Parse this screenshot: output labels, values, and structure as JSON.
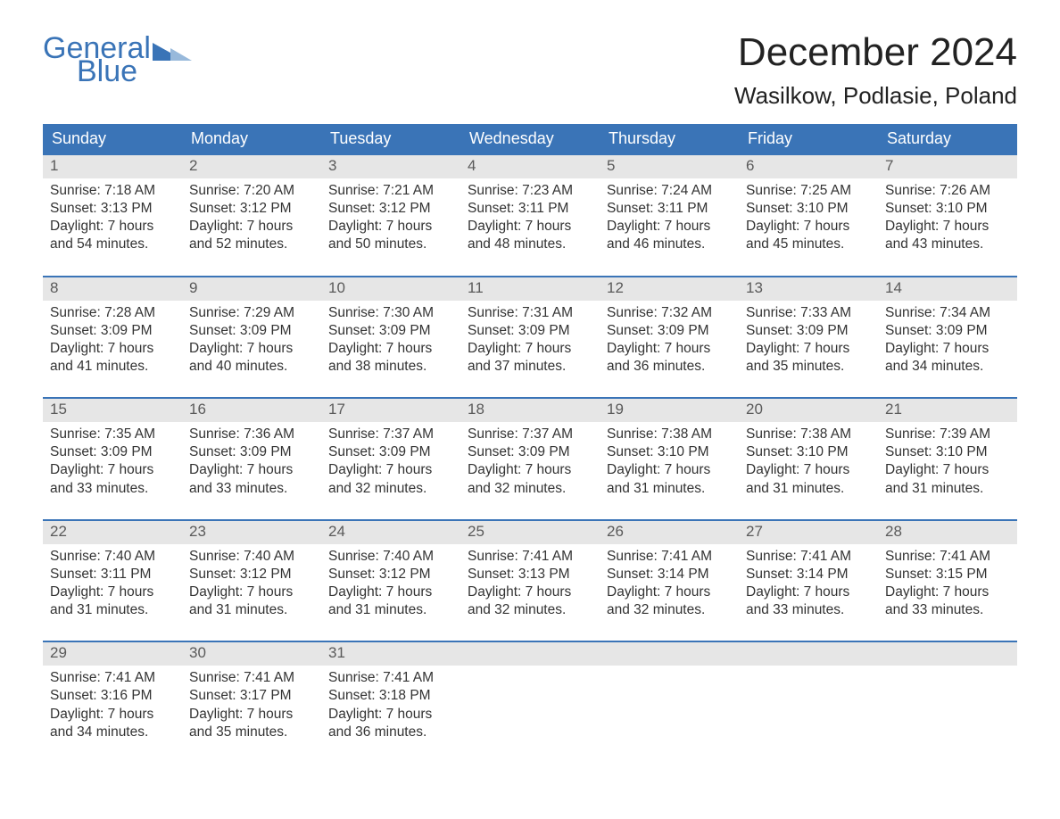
{
  "brand": {
    "word1": "General",
    "word2": "Blue",
    "color": "#3a74b7"
  },
  "header": {
    "title": "December 2024",
    "location": "Wasilkow, Podlasie, Poland"
  },
  "calendar": {
    "day_names": [
      "Sunday",
      "Monday",
      "Tuesday",
      "Wednesday",
      "Thursday",
      "Friday",
      "Saturday"
    ],
    "header_bg": "#3a74b7",
    "header_fg": "#ffffff",
    "daynum_bg": "#e6e6e6",
    "week_rule_color": "#3a74b7",
    "text_color": "#333333",
    "weeks": [
      [
        {
          "n": "1",
          "sunrise": "Sunrise: 7:18 AM",
          "sunset": "Sunset: 3:13 PM",
          "dl1": "Daylight: 7 hours",
          "dl2": "and 54 minutes."
        },
        {
          "n": "2",
          "sunrise": "Sunrise: 7:20 AM",
          "sunset": "Sunset: 3:12 PM",
          "dl1": "Daylight: 7 hours",
          "dl2": "and 52 minutes."
        },
        {
          "n": "3",
          "sunrise": "Sunrise: 7:21 AM",
          "sunset": "Sunset: 3:12 PM",
          "dl1": "Daylight: 7 hours",
          "dl2": "and 50 minutes."
        },
        {
          "n": "4",
          "sunrise": "Sunrise: 7:23 AM",
          "sunset": "Sunset: 3:11 PM",
          "dl1": "Daylight: 7 hours",
          "dl2": "and 48 minutes."
        },
        {
          "n": "5",
          "sunrise": "Sunrise: 7:24 AM",
          "sunset": "Sunset: 3:11 PM",
          "dl1": "Daylight: 7 hours",
          "dl2": "and 46 minutes."
        },
        {
          "n": "6",
          "sunrise": "Sunrise: 7:25 AM",
          "sunset": "Sunset: 3:10 PM",
          "dl1": "Daylight: 7 hours",
          "dl2": "and 45 minutes."
        },
        {
          "n": "7",
          "sunrise": "Sunrise: 7:26 AM",
          "sunset": "Sunset: 3:10 PM",
          "dl1": "Daylight: 7 hours",
          "dl2": "and 43 minutes."
        }
      ],
      [
        {
          "n": "8",
          "sunrise": "Sunrise: 7:28 AM",
          "sunset": "Sunset: 3:09 PM",
          "dl1": "Daylight: 7 hours",
          "dl2": "and 41 minutes."
        },
        {
          "n": "9",
          "sunrise": "Sunrise: 7:29 AM",
          "sunset": "Sunset: 3:09 PM",
          "dl1": "Daylight: 7 hours",
          "dl2": "and 40 minutes."
        },
        {
          "n": "10",
          "sunrise": "Sunrise: 7:30 AM",
          "sunset": "Sunset: 3:09 PM",
          "dl1": "Daylight: 7 hours",
          "dl2": "and 38 minutes."
        },
        {
          "n": "11",
          "sunrise": "Sunrise: 7:31 AM",
          "sunset": "Sunset: 3:09 PM",
          "dl1": "Daylight: 7 hours",
          "dl2": "and 37 minutes."
        },
        {
          "n": "12",
          "sunrise": "Sunrise: 7:32 AM",
          "sunset": "Sunset: 3:09 PM",
          "dl1": "Daylight: 7 hours",
          "dl2": "and 36 minutes."
        },
        {
          "n": "13",
          "sunrise": "Sunrise: 7:33 AM",
          "sunset": "Sunset: 3:09 PM",
          "dl1": "Daylight: 7 hours",
          "dl2": "and 35 minutes."
        },
        {
          "n": "14",
          "sunrise": "Sunrise: 7:34 AM",
          "sunset": "Sunset: 3:09 PM",
          "dl1": "Daylight: 7 hours",
          "dl2": "and 34 minutes."
        }
      ],
      [
        {
          "n": "15",
          "sunrise": "Sunrise: 7:35 AM",
          "sunset": "Sunset: 3:09 PM",
          "dl1": "Daylight: 7 hours",
          "dl2": "and 33 minutes."
        },
        {
          "n": "16",
          "sunrise": "Sunrise: 7:36 AM",
          "sunset": "Sunset: 3:09 PM",
          "dl1": "Daylight: 7 hours",
          "dl2": "and 33 minutes."
        },
        {
          "n": "17",
          "sunrise": "Sunrise: 7:37 AM",
          "sunset": "Sunset: 3:09 PM",
          "dl1": "Daylight: 7 hours",
          "dl2": "and 32 minutes."
        },
        {
          "n": "18",
          "sunrise": "Sunrise: 7:37 AM",
          "sunset": "Sunset: 3:09 PM",
          "dl1": "Daylight: 7 hours",
          "dl2": "and 32 minutes."
        },
        {
          "n": "19",
          "sunrise": "Sunrise: 7:38 AM",
          "sunset": "Sunset: 3:10 PM",
          "dl1": "Daylight: 7 hours",
          "dl2": "and 31 minutes."
        },
        {
          "n": "20",
          "sunrise": "Sunrise: 7:38 AM",
          "sunset": "Sunset: 3:10 PM",
          "dl1": "Daylight: 7 hours",
          "dl2": "and 31 minutes."
        },
        {
          "n": "21",
          "sunrise": "Sunrise: 7:39 AM",
          "sunset": "Sunset: 3:10 PM",
          "dl1": "Daylight: 7 hours",
          "dl2": "and 31 minutes."
        }
      ],
      [
        {
          "n": "22",
          "sunrise": "Sunrise: 7:40 AM",
          "sunset": "Sunset: 3:11 PM",
          "dl1": "Daylight: 7 hours",
          "dl2": "and 31 minutes."
        },
        {
          "n": "23",
          "sunrise": "Sunrise: 7:40 AM",
          "sunset": "Sunset: 3:12 PM",
          "dl1": "Daylight: 7 hours",
          "dl2": "and 31 minutes."
        },
        {
          "n": "24",
          "sunrise": "Sunrise: 7:40 AM",
          "sunset": "Sunset: 3:12 PM",
          "dl1": "Daylight: 7 hours",
          "dl2": "and 31 minutes."
        },
        {
          "n": "25",
          "sunrise": "Sunrise: 7:41 AM",
          "sunset": "Sunset: 3:13 PM",
          "dl1": "Daylight: 7 hours",
          "dl2": "and 32 minutes."
        },
        {
          "n": "26",
          "sunrise": "Sunrise: 7:41 AM",
          "sunset": "Sunset: 3:14 PM",
          "dl1": "Daylight: 7 hours",
          "dl2": "and 32 minutes."
        },
        {
          "n": "27",
          "sunrise": "Sunrise: 7:41 AM",
          "sunset": "Sunset: 3:14 PM",
          "dl1": "Daylight: 7 hours",
          "dl2": "and 33 minutes."
        },
        {
          "n": "28",
          "sunrise": "Sunrise: 7:41 AM",
          "sunset": "Sunset: 3:15 PM",
          "dl1": "Daylight: 7 hours",
          "dl2": "and 33 minutes."
        }
      ],
      [
        {
          "n": "29",
          "sunrise": "Sunrise: 7:41 AM",
          "sunset": "Sunset: 3:16 PM",
          "dl1": "Daylight: 7 hours",
          "dl2": "and 34 minutes."
        },
        {
          "n": "30",
          "sunrise": "Sunrise: 7:41 AM",
          "sunset": "Sunset: 3:17 PM",
          "dl1": "Daylight: 7 hours",
          "dl2": "and 35 minutes."
        },
        {
          "n": "31",
          "sunrise": "Sunrise: 7:41 AM",
          "sunset": "Sunset: 3:18 PM",
          "dl1": "Daylight: 7 hours",
          "dl2": "and 36 minutes."
        },
        {
          "empty": true
        },
        {
          "empty": true
        },
        {
          "empty": true
        },
        {
          "empty": true
        }
      ]
    ]
  }
}
